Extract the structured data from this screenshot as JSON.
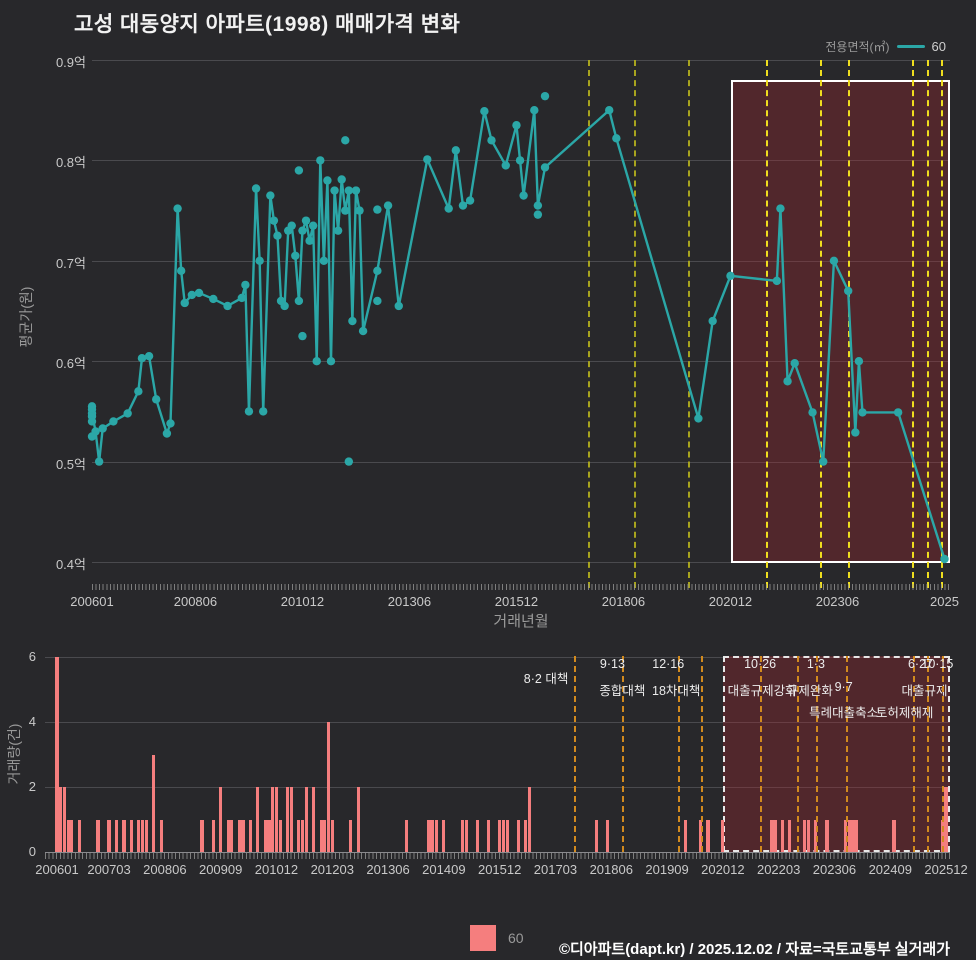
{
  "title": "고성 대동양지 아파트(1998) 매매가격 변화",
  "legend_top": {
    "label": "전용면적(㎡)",
    "value": "60"
  },
  "legend_bottom": {
    "value": "60"
  },
  "footer": "©디아파트(dapt.kr) / 2025.12.02 / 자료=국토교통부 실거래가",
  "colors": {
    "background": "#28282B",
    "line": "#2BA7A7",
    "bar": "#F57E7E",
    "grid": "#4A4A4E",
    "grid_zero": "#8A8A8E",
    "event_line_top_outside": "#A8A41E",
    "event_line_top_inside": "#EFDE1F",
    "event_line_bottom": "#D28A1E",
    "highlight_fill": "rgba(168,36,46,0.32)",
    "highlight_border": "#FFFFFF",
    "tick_text": "#C9C9C9",
    "axis_text": "#9A9A9A",
    "title_text": "#F2F2F2",
    "annotation_text": "#ECECEC"
  },
  "price_chart": {
    "y_axis_title": "평균가(원)",
    "x_axis_title": "거래년월",
    "y_ticks": [
      "0.9억",
      "0.8억",
      "0.7억",
      "0.6억",
      "0.5억",
      "0.4억"
    ],
    "x_ticks": [
      "200601",
      "200806",
      "201012",
      "201306",
      "201512",
      "201806",
      "202012",
      "202306",
      "2025"
    ]
  },
  "volume_chart": {
    "y_axis_title": "거래량(건)",
    "y_ticks": [
      "0",
      "2",
      "4",
      "6"
    ],
    "x_ticks": [
      "200601",
      "200703",
      "200806",
      "200909",
      "201012",
      "201203",
      "201306",
      "201409",
      "201512",
      "201703",
      "201806",
      "201909",
      "202012",
      "202203",
      "202306",
      "202409",
      "202512"
    ]
  },
  "events": [
    {
      "yyyymm": 201708,
      "date_label": "8·2 대책",
      "date_row": 1.5,
      "date_dx": -28,
      "name_label": "",
      "name_row": 2,
      "name_dx": 0,
      "in_top": true,
      "in_bottom": true
    },
    {
      "yyyymm": 201809,
      "date_label": "9·13",
      "date_row": 1,
      "date_dx": -10,
      "name_label": "종합대책",
      "name_row": 2,
      "name_dx": 0,
      "in_top": true,
      "in_bottom": true
    },
    {
      "yyyymm": 201912,
      "date_label": "12·16",
      "date_row": 1,
      "date_dx": -10,
      "name_label": "18차대책",
      "name_row": 2,
      "name_dx": -2,
      "in_top": true,
      "in_bottom": true
    },
    {
      "yyyymm": 202006,
      "date_label": "",
      "date_row": 1,
      "date_dx": 0,
      "name_label": "",
      "name_row": 2,
      "name_dx": 0,
      "in_top": false,
      "in_bottom": true
    },
    {
      "yyyymm": 202110,
      "date_label": "10·26",
      "date_row": 1,
      "date_dx": 0,
      "name_label": "대출규제강화",
      "name_row": 2,
      "name_dx": 2,
      "in_top": true,
      "in_bottom": true
    },
    {
      "yyyymm": 202208,
      "date_label": "",
      "date_row": 1,
      "date_dx": 0,
      "name_label": "",
      "name_row": 2,
      "name_dx": 0,
      "in_top": false,
      "in_bottom": true
    },
    {
      "yyyymm": 202301,
      "date_label": "1·3",
      "date_row": 1,
      "date_dx": 0,
      "name_label": "규제완화",
      "name_row": 2,
      "name_dx": -6,
      "in_top": true,
      "in_bottom": true
    },
    {
      "yyyymm": 202309,
      "date_label": "9·7",
      "date_row": 2,
      "date_dx": -2,
      "name_label": "특례대출축소",
      "name_row": 3,
      "name_dx": -2,
      "in_top": true,
      "in_bottom": true
    },
    {
      "yyyymm": 202503,
      "date_label": "",
      "date_row": 1,
      "date_dx": 0,
      "name_label": "토허제해제",
      "name_row": 3,
      "name_dx": -8,
      "in_top": true,
      "in_bottom": true
    },
    {
      "yyyymm": 202507,
      "date_label": "6·27",
      "date_row": 1,
      "date_dx": -7,
      "name_label": "대출규제",
      "name_row": 2,
      "name_dx": -3,
      "in_top": true,
      "in_bottom": true
    },
    {
      "yyyymm": 202511,
      "date_label": "10·15",
      "date_row": 1,
      "date_dx": -5,
      "name_label": "",
      "name_row": 2,
      "name_dx": 0,
      "in_top": true,
      "in_bottom": true
    }
  ],
  "chart_data": [
    {
      "type": "line",
      "title": "고성 대동양지 아파트(1998) 매매가격 변화",
      "xlabel": "거래년월",
      "ylabel": "평균가(원)",
      "unit": "억",
      "ylim": [
        0.4,
        0.9
      ],
      "series_name": "60",
      "legend_position": "top-right",
      "grid": true,
      "highlight_region": {
        "from": 202012,
        "to": 202512
      },
      "points": [
        [
          200601,
          0.548
        ],
        [
          200602,
          0.53
        ],
        [
          200603,
          0.5
        ],
        [
          200604,
          0.533
        ],
        [
          200607,
          0.54
        ],
        [
          200611,
          0.548
        ],
        [
          200702,
          0.57
        ],
        [
          200703,
          0.603
        ],
        [
          200705,
          0.605
        ],
        [
          200707,
          0.562
        ],
        [
          200710,
          0.528
        ],
        [
          200711,
          0.538
        ],
        [
          200801,
          0.752
        ],
        [
          200802,
          0.69
        ],
        [
          200803,
          0.658
        ],
        [
          200805,
          0.666
        ],
        [
          200807,
          0.668
        ],
        [
          200811,
          0.662
        ],
        [
          200903,
          0.655
        ],
        [
          200907,
          0.663
        ],
        [
          200908,
          0.676
        ],
        [
          200909,
          0.55
        ],
        [
          200911,
          0.772
        ],
        [
          200912,
          0.7
        ],
        [
          201001,
          0.55
        ],
        [
          201003,
          0.765
        ],
        [
          201004,
          0.74
        ],
        [
          201005,
          0.725
        ],
        [
          201006,
          0.66
        ],
        [
          201007,
          0.655
        ],
        [
          201008,
          0.73
        ],
        [
          201009,
          0.735
        ],
        [
          201010,
          0.705
        ],
        [
          201011,
          0.66
        ],
        [
          201012,
          0.73
        ],
        [
          201101,
          0.74
        ],
        [
          201102,
          0.72
        ],
        [
          201103,
          0.735
        ],
        [
          201104,
          0.6
        ],
        [
          201105,
          0.8
        ],
        [
          201106,
          0.7
        ],
        [
          201107,
          0.78
        ],
        [
          201108,
          0.6
        ],
        [
          201109,
          0.77
        ],
        [
          201110,
          0.73
        ],
        [
          201111,
          0.781
        ],
        [
          201112,
          0.75
        ],
        [
          201201,
          0.77
        ],
        [
          201202,
          0.64
        ],
        [
          201203,
          0.77
        ],
        [
          201204,
          0.75
        ],
        [
          201205,
          0.63
        ],
        [
          201209,
          0.69
        ],
        [
          201212,
          0.755
        ],
        [
          201303,
          0.655
        ],
        [
          201311,
          0.801
        ],
        [
          201405,
          0.752
        ],
        [
          201407,
          0.81
        ],
        [
          201409,
          0.755
        ],
        [
          201411,
          0.76
        ],
        [
          201503,
          0.849
        ],
        [
          201505,
          0.82
        ],
        [
          201509,
          0.795
        ],
        [
          201512,
          0.835
        ],
        [
          201601,
          0.8
        ],
        [
          201602,
          0.765
        ],
        [
          201605,
          0.85
        ],
        [
          201606,
          0.755
        ],
        [
          201608,
          0.793
        ],
        [
          201802,
          0.85
        ],
        [
          201804,
          0.822
        ],
        [
          202003,
          0.543
        ],
        [
          202007,
          0.64
        ],
        [
          202012,
          0.685
        ],
        [
          202201,
          0.68
        ],
        [
          202202,
          0.752
        ],
        [
          202204,
          0.58
        ],
        [
          202206,
          0.598
        ],
        [
          202211,
          0.549
        ],
        [
          202302,
          0.5
        ],
        [
          202305,
          0.7
        ],
        [
          202309,
          0.67
        ],
        [
          202311,
          0.529
        ],
        [
          202312,
          0.6
        ],
        [
          202401,
          0.549
        ],
        [
          202411,
          0.549
        ],
        [
          202512,
          0.403
        ]
      ],
      "extra_markers": [
        [
          200601,
          0.555
        ],
        [
          200601,
          0.552
        ],
        [
          200601,
          0.545
        ],
        [
          200601,
          0.54
        ],
        [
          200601,
          0.525
        ],
        [
          201011,
          0.79
        ],
        [
          201012,
          0.625
        ],
        [
          201112,
          0.82
        ],
        [
          201201,
          0.5
        ],
        [
          201209,
          0.751
        ],
        [
          201209,
          0.66
        ],
        [
          201608,
          0.864
        ],
        [
          201606,
          0.746
        ]
      ]
    },
    {
      "type": "bar",
      "xlabel": "",
      "ylabel": "거래량(건)",
      "ylim": [
        0,
        6
      ],
      "y_ticks": [
        0,
        2,
        4,
        6
      ],
      "series_name": "60",
      "grid": true,
      "legend_position": "bottom-center",
      "bars": [
        [
          200601,
          6
        ],
        [
          200602,
          2
        ],
        [
          200603,
          2
        ],
        [
          200604,
          1
        ],
        [
          200605,
          1
        ],
        [
          200607,
          1
        ],
        [
          200612,
          1
        ],
        [
          200703,
          1
        ],
        [
          200705,
          1
        ],
        [
          200707,
          1
        ],
        [
          200709,
          1
        ],
        [
          200711,
          1
        ],
        [
          200712,
          1
        ],
        [
          200801,
          1
        ],
        [
          200803,
          3
        ],
        [
          200805,
          1
        ],
        [
          200904,
          1
        ],
        [
          200907,
          1
        ],
        [
          200909,
          2
        ],
        [
          200911,
          1
        ],
        [
          200912,
          1
        ],
        [
          201002,
          1
        ],
        [
          201003,
          1
        ],
        [
          201005,
          1
        ],
        [
          201007,
          2
        ],
        [
          201009,
          1
        ],
        [
          201010,
          1
        ],
        [
          201011,
          2
        ],
        [
          201012,
          2
        ],
        [
          201101,
          1
        ],
        [
          201103,
          2
        ],
        [
          201104,
          2
        ],
        [
          201106,
          1
        ],
        [
          201107,
          1
        ],
        [
          201108,
          2
        ],
        [
          201110,
          2
        ],
        [
          201112,
          1
        ],
        [
          201201,
          1
        ],
        [
          201202,
          4
        ],
        [
          201203,
          1
        ],
        [
          201208,
          1
        ],
        [
          201210,
          2
        ],
        [
          201311,
          1
        ],
        [
          201405,
          1
        ],
        [
          201406,
          1
        ],
        [
          201407,
          1
        ],
        [
          201409,
          1
        ],
        [
          201502,
          1
        ],
        [
          201503,
          1
        ],
        [
          201506,
          1
        ],
        [
          201509,
          1
        ],
        [
          201512,
          1
        ],
        [
          201601,
          1
        ],
        [
          201602,
          1
        ],
        [
          201605,
          1
        ],
        [
          201607,
          1
        ],
        [
          201608,
          2
        ],
        [
          201802,
          1
        ],
        [
          201805,
          1
        ],
        [
          202002,
          1
        ],
        [
          202006,
          1
        ],
        [
          202008,
          1
        ],
        [
          202012,
          1
        ],
        [
          202201,
          1
        ],
        [
          202202,
          1
        ],
        [
          202204,
          1
        ],
        [
          202206,
          1
        ],
        [
          202210,
          1
        ],
        [
          202211,
          1
        ],
        [
          202301,
          1
        ],
        [
          202304,
          1
        ],
        [
          202309,
          1
        ],
        [
          202310,
          1
        ],
        [
          202311,
          1
        ],
        [
          202312,
          1
        ],
        [
          202410,
          1
        ],
        [
          202511,
          1
        ],
        [
          202512,
          2
        ]
      ]
    }
  ]
}
